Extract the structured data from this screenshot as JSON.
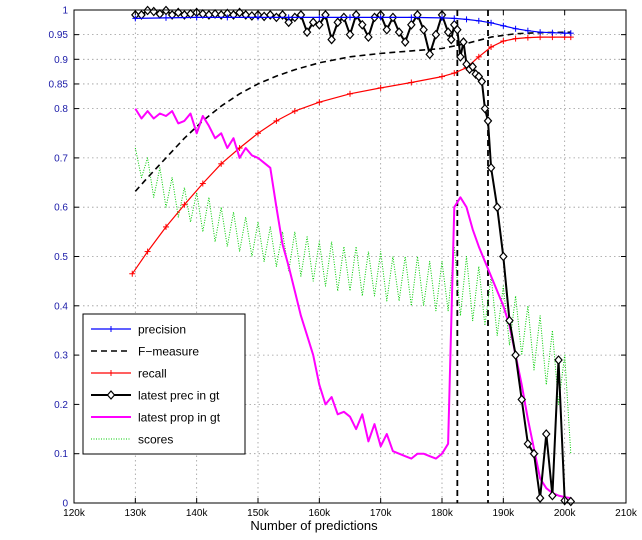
{
  "chart_data": {
    "type": "line",
    "title": "",
    "xlabel": "Number of predictions",
    "ylabel": "",
    "xlim": [
      120000,
      210000
    ],
    "ylim": [
      0,
      1
    ],
    "grid": true,
    "legend_position": "lower-left",
    "x_ticks": [
      {
        "value": 120000,
        "label": "120k"
      },
      {
        "value": 130000,
        "label": "130k"
      },
      {
        "value": 140000,
        "label": "140k"
      },
      {
        "value": 150000,
        "label": "150k"
      },
      {
        "value": 160000,
        "label": "160k"
      },
      {
        "value": 170000,
        "label": "170k"
      },
      {
        "value": 180000,
        "label": "180k"
      },
      {
        "value": 190000,
        "label": "190k"
      },
      {
        "value": 200000,
        "label": "200k"
      },
      {
        "value": 210000,
        "label": "210k"
      }
    ],
    "y_ticks": [
      {
        "value": 0,
        "label": "0"
      },
      {
        "value": 0.1,
        "label": "0.1"
      },
      {
        "value": 0.2,
        "label": "0.2"
      },
      {
        "value": 0.3,
        "label": "0.3"
      },
      {
        "value": 0.4,
        "label": "0.4"
      },
      {
        "value": 0.5,
        "label": "0.5"
      },
      {
        "value": 0.6,
        "label": "0.6"
      },
      {
        "value": 0.7,
        "label": "0.7"
      },
      {
        "value": 0.8,
        "label": "0.8"
      },
      {
        "value": 0.85,
        "label": "0.85"
      },
      {
        "value": 0.9,
        "label": "0.9"
      },
      {
        "value": 0.95,
        "label": "0.95"
      },
      {
        "value": 1,
        "label": "1"
      }
    ],
    "vlines": [
      182500,
      187500
    ],
    "series": [
      {
        "name": "precision",
        "color": "#0000ff",
        "line": "solid",
        "marker": "plus",
        "x": [
          130000,
          135000,
          140000,
          145000,
          150000,
          155000,
          160000,
          165000,
          170000,
          175000,
          180000,
          182000,
          184000,
          186000,
          188000,
          190000,
          192000,
          194000,
          196000,
          198000,
          200000,
          201000
        ],
        "y": [
          0.983,
          0.984,
          0.985,
          0.985,
          0.985,
          0.985,
          0.985,
          0.985,
          0.985,
          0.985,
          0.984,
          0.983,
          0.981,
          0.978,
          0.974,
          0.968,
          0.962,
          0.958,
          0.955,
          0.954,
          0.953,
          0.953
        ]
      },
      {
        "name": "F−measure",
        "color": "#000000",
        "line": "dashed",
        "marker": "none",
        "x": [
          130000,
          132000,
          135000,
          138000,
          141000,
          144000,
          147000,
          150000,
          153000,
          156000,
          160000,
          165000,
          170000,
          175000,
          180000,
          184000,
          188000,
          192000,
          196000,
          201000
        ],
        "y": [
          0.632,
          0.66,
          0.7,
          0.74,
          0.775,
          0.805,
          0.83,
          0.85,
          0.866,
          0.879,
          0.893,
          0.905,
          0.912,
          0.917,
          0.922,
          0.932,
          0.945,
          0.952,
          0.954,
          0.955
        ]
      },
      {
        "name": "recall",
        "color": "#ff0000",
        "line": "solid",
        "marker": "plus",
        "x": [
          129500,
          132000,
          135000,
          138000,
          141000,
          144000,
          147000,
          150000,
          153000,
          156000,
          160000,
          165000,
          170000,
          175000,
          180000,
          182000,
          184000,
          186000,
          188000,
          190000,
          192000,
          194000,
          196000,
          198000,
          200000,
          201000
        ],
        "y": [
          0.465,
          0.51,
          0.56,
          0.605,
          0.648,
          0.688,
          0.72,
          0.75,
          0.775,
          0.795,
          0.813,
          0.83,
          0.842,
          0.853,
          0.865,
          0.872,
          0.883,
          0.905,
          0.925,
          0.937,
          0.942,
          0.944,
          0.945,
          0.945,
          0.945,
          0.945
        ]
      },
      {
        "name": "latest prec in gt",
        "color": "#000000",
        "line": "solid",
        "marker": "diamond",
        "x": [
          130000,
          131000,
          132000,
          133000,
          134000,
          135000,
          136000,
          137000,
          138000,
          139000,
          140000,
          141000,
          142000,
          143000,
          144000,
          145000,
          146000,
          147000,
          148000,
          149000,
          150000,
          151000,
          152000,
          153000,
          154000,
          155000,
          156000,
          157000,
          158000,
          159000,
          160000,
          161000,
          162000,
          163000,
          164000,
          165000,
          166000,
          167000,
          168000,
          169000,
          170000,
          171000,
          172000,
          173000,
          174000,
          175000,
          176000,
          177000,
          178000,
          179000,
          180000,
          181000,
          181500,
          182000,
          182500,
          183000,
          183500,
          184000,
          184500,
          185000,
          185500,
          186000,
          186500,
          187000,
          187500,
          188000,
          189000,
          190000,
          191000,
          192000,
          193000,
          194000,
          195000,
          196000,
          197000,
          198000,
          199000,
          200000,
          201000
        ],
        "y": [
          0.99,
          0.99,
          0.999,
          0.997,
          0.992,
          0.999,
          0.99,
          0.995,
          0.99,
          0.992,
          0.995,
          0.992,
          0.99,
          0.992,
          0.99,
          0.993,
          0.99,
          0.995,
          0.99,
          0.988,
          0.99,
          0.987,
          0.99,
          0.985,
          0.99,
          0.975,
          0.985,
          0.99,
          0.955,
          0.975,
          0.97,
          0.99,
          0.94,
          0.975,
          0.985,
          0.95,
          0.99,
          0.97,
          0.945,
          0.985,
          0.99,
          0.96,
          0.985,
          0.955,
          0.935,
          0.97,
          0.99,
          0.96,
          0.91,
          0.95,
          0.99,
          0.955,
          0.94,
          0.97,
          0.96,
          0.905,
          0.935,
          0.89,
          0.88,
          0.885,
          0.87,
          0.865,
          0.855,
          0.8,
          0.775,
          0.68,
          0.6,
          0.5,
          0.37,
          0.3,
          0.21,
          0.12,
          0.1,
          0.01,
          0.14,
          0.015,
          0.29,
          0.005,
          0.003
        ]
      },
      {
        "name": "latest prop in gt",
        "color": "#ff00ff",
        "line": "solid",
        "marker": "none",
        "x": [
          130000,
          131000,
          132000,
          133000,
          134000,
          135000,
          136000,
          137000,
          138000,
          139000,
          140000,
          141000,
          142000,
          143000,
          144000,
          145000,
          146000,
          147000,
          148000,
          149000,
          150000,
          151000,
          152000,
          153000,
          154000,
          155000,
          156000,
          157000,
          158000,
          159000,
          160000,
          161000,
          162000,
          163000,
          164000,
          165000,
          166000,
          167000,
          168000,
          169000,
          170000,
          171000,
          172000,
          173000,
          174000,
          175000,
          176000,
          177000,
          178000,
          179000,
          180000,
          181000,
          182000,
          183000,
          184000,
          185000,
          186000,
          187000,
          188000,
          189000,
          190000,
          191000,
          192000,
          193000,
          194000,
          195000,
          196000,
          197000,
          198000,
          199000,
          200000,
          201000
        ],
        "y": [
          0.8,
          0.78,
          0.795,
          0.78,
          0.79,
          0.785,
          0.795,
          0.77,
          0.775,
          0.79,
          0.75,
          0.785,
          0.765,
          0.74,
          0.75,
          0.72,
          0.74,
          0.7,
          0.72,
          0.705,
          0.7,
          0.69,
          0.68,
          0.6,
          0.525,
          0.48,
          0.43,
          0.38,
          0.34,
          0.3,
          0.24,
          0.2,
          0.215,
          0.18,
          0.185,
          0.175,
          0.15,
          0.18,
          0.125,
          0.16,
          0.115,
          0.14,
          0.105,
          0.1,
          0.095,
          0.09,
          0.1,
          0.1,
          0.095,
          0.09,
          0.1,
          0.12,
          0.6,
          0.62,
          0.6,
          0.555,
          0.52,
          0.49,
          0.46,
          0.43,
          0.4,
          0.36,
          0.3,
          0.24,
          0.17,
          0.11,
          0.05,
          0.03,
          0.02,
          0.015,
          0.012,
          0.01
        ]
      },
      {
        "name": "scores",
        "color": "#00cc00",
        "line": "dotted",
        "marker": "none",
        "x": [
          130000,
          131000,
          132000,
          133000,
          134000,
          135000,
          136000,
          137000,
          138000,
          139000,
          140000,
          141000,
          142000,
          143000,
          144000,
          145000,
          146000,
          147000,
          148000,
          149000,
          150000,
          151000,
          152000,
          153000,
          154000,
          155000,
          156000,
          157000,
          158000,
          159000,
          160000,
          161000,
          162000,
          163000,
          164000,
          165000,
          166000,
          167000,
          168000,
          169000,
          170000,
          171000,
          172000,
          173000,
          174000,
          175000,
          176000,
          177000,
          178000,
          179000,
          180000,
          181000,
          182000,
          183000,
          184000,
          185000,
          186000,
          187000,
          188000,
          189000,
          190000,
          191000,
          192000,
          193000,
          194000,
          195000,
          196000,
          197000,
          198000,
          199000,
          200000,
          201000
        ],
        "y": [
          0.72,
          0.66,
          0.7,
          0.62,
          0.68,
          0.6,
          0.66,
          0.58,
          0.64,
          0.57,
          0.63,
          0.55,
          0.62,
          0.53,
          0.6,
          0.52,
          0.59,
          0.51,
          0.58,
          0.5,
          0.57,
          0.49,
          0.56,
          0.48,
          0.55,
          0.47,
          0.55,
          0.46,
          0.54,
          0.45,
          0.53,
          0.44,
          0.53,
          0.43,
          0.52,
          0.43,
          0.52,
          0.42,
          0.51,
          0.42,
          0.51,
          0.41,
          0.5,
          0.41,
          0.5,
          0.4,
          0.5,
          0.4,
          0.49,
          0.39,
          0.49,
          0.39,
          0.52,
          0.38,
          0.5,
          0.37,
          0.48,
          0.36,
          0.46,
          0.34,
          0.44,
          0.32,
          0.42,
          0.3,
          0.4,
          0.27,
          0.38,
          0.24,
          0.35,
          0.2,
          0.3,
          0.1
        ]
      }
    ]
  }
}
